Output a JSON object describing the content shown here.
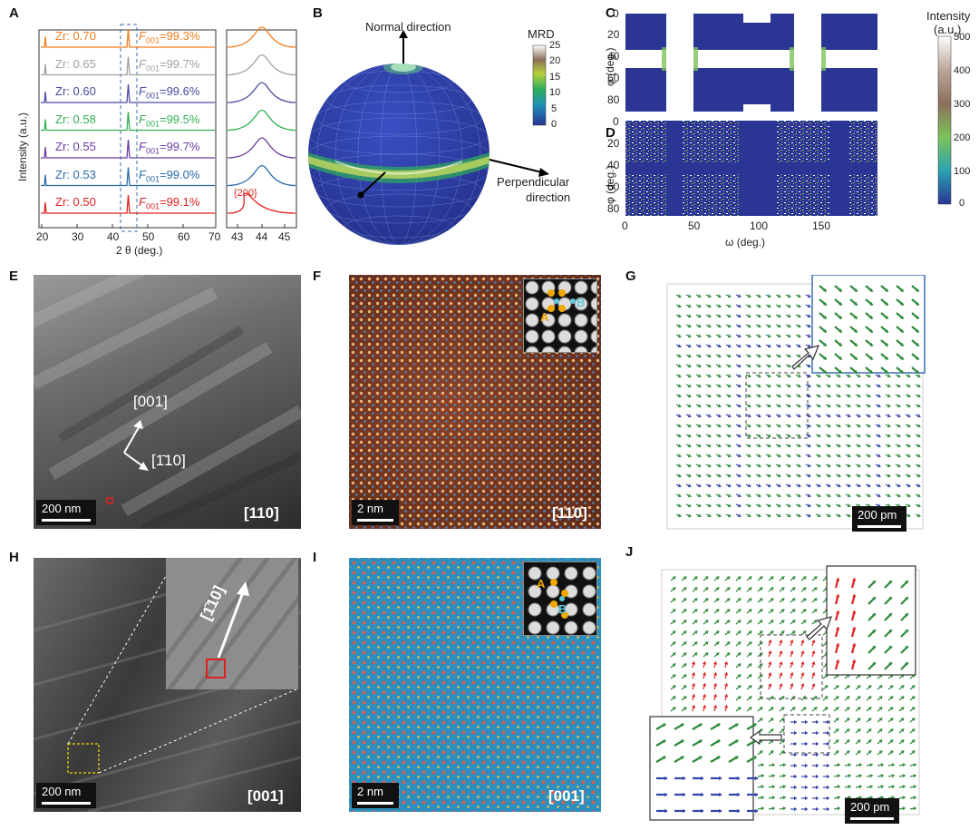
{
  "panel_labels": [
    "A",
    "B",
    "C",
    "D",
    "E",
    "F",
    "G",
    "H",
    "I",
    "J"
  ],
  "panelA": {
    "ylabel": "Intensity (a.u.)",
    "xlabel": "2 θ (deg.)",
    "xticks_main": [
      "20",
      "30",
      "40",
      "50",
      "60",
      "70"
    ],
    "xticks_zoom": [
      "43",
      "44",
      "45"
    ],
    "peak_label": "{200}",
    "series": [
      {
        "zr": "Zr: 0.70",
        "f001": "=99.3%",
        "color": "#f07d20"
      },
      {
        "zr": "Zr: 0.65",
        "f001": "=99.7%",
        "color": "#a0a0a0"
      },
      {
        "zr": "Zr: 0.60",
        "f001": "=99.6%",
        "color": "#4a4aa0"
      },
      {
        "zr": "Zr: 0.58",
        "f001": "=99.5%",
        "color": "#30b050"
      },
      {
        "zr": "Zr: 0.55",
        "f001": "=99.7%",
        "color": "#6a3aa0"
      },
      {
        "zr": "Zr: 0.53",
        "f001": "=99.0%",
        "color": "#2a6aa8"
      },
      {
        "zr": "Zr: 0.50",
        "f001": "=99.1%",
        "color": "#e02020"
      }
    ],
    "f_prefix": "F",
    "f_sub": "001"
  },
  "panelB": {
    "normal_label": "Normal direction",
    "perp_label_1": "Perpendicular",
    "perp_label_2": "direction",
    "colorbar_title": "MRD",
    "colorbar_ticks": [
      "25",
      "20",
      "15",
      "10",
      "5",
      "0"
    ]
  },
  "panelCD": {
    "ylabel": "φ (deg.)",
    "xlabel": "ω (deg.)",
    "yticks": [
      "0",
      "20",
      "40",
      "60",
      "80"
    ],
    "xticks": [
      "0",
      "50",
      "100",
      "150"
    ],
    "colorbar_title_1": "Intensity",
    "colorbar_title_2": "(a.u.)",
    "colorbar_ticks": [
      "500",
      "400",
      "300",
      "200",
      "100",
      "0"
    ]
  },
  "panelE": {
    "dir1": "[001]",
    "dir2": "[1̄10]",
    "scale": "200 nm",
    "zone": "[110]"
  },
  "panelF": {
    "scale": "2 nm",
    "zone": "[110]",
    "site_a": "A",
    "site_b": "B"
  },
  "panelG": {
    "scale": "200 pm"
  },
  "panelH": {
    "dir": "[1̄10]",
    "scale": "200 nm",
    "zone": "[001]"
  },
  "panelI": {
    "scale": "2 nm",
    "zone": "[001]",
    "site_a": "A",
    "site_b": "B"
  },
  "panelJ": {
    "scale": "200 pm"
  },
  "colors": {
    "orange": "#f07d20",
    "gray": "#a0a0a0",
    "red": "#e02020",
    "navy": "#2a3594",
    "green": "#2f8a3a",
    "blue": "#3344aa",
    "cyan": "#5fc7d8",
    "gold": "#f1a700"
  }
}
